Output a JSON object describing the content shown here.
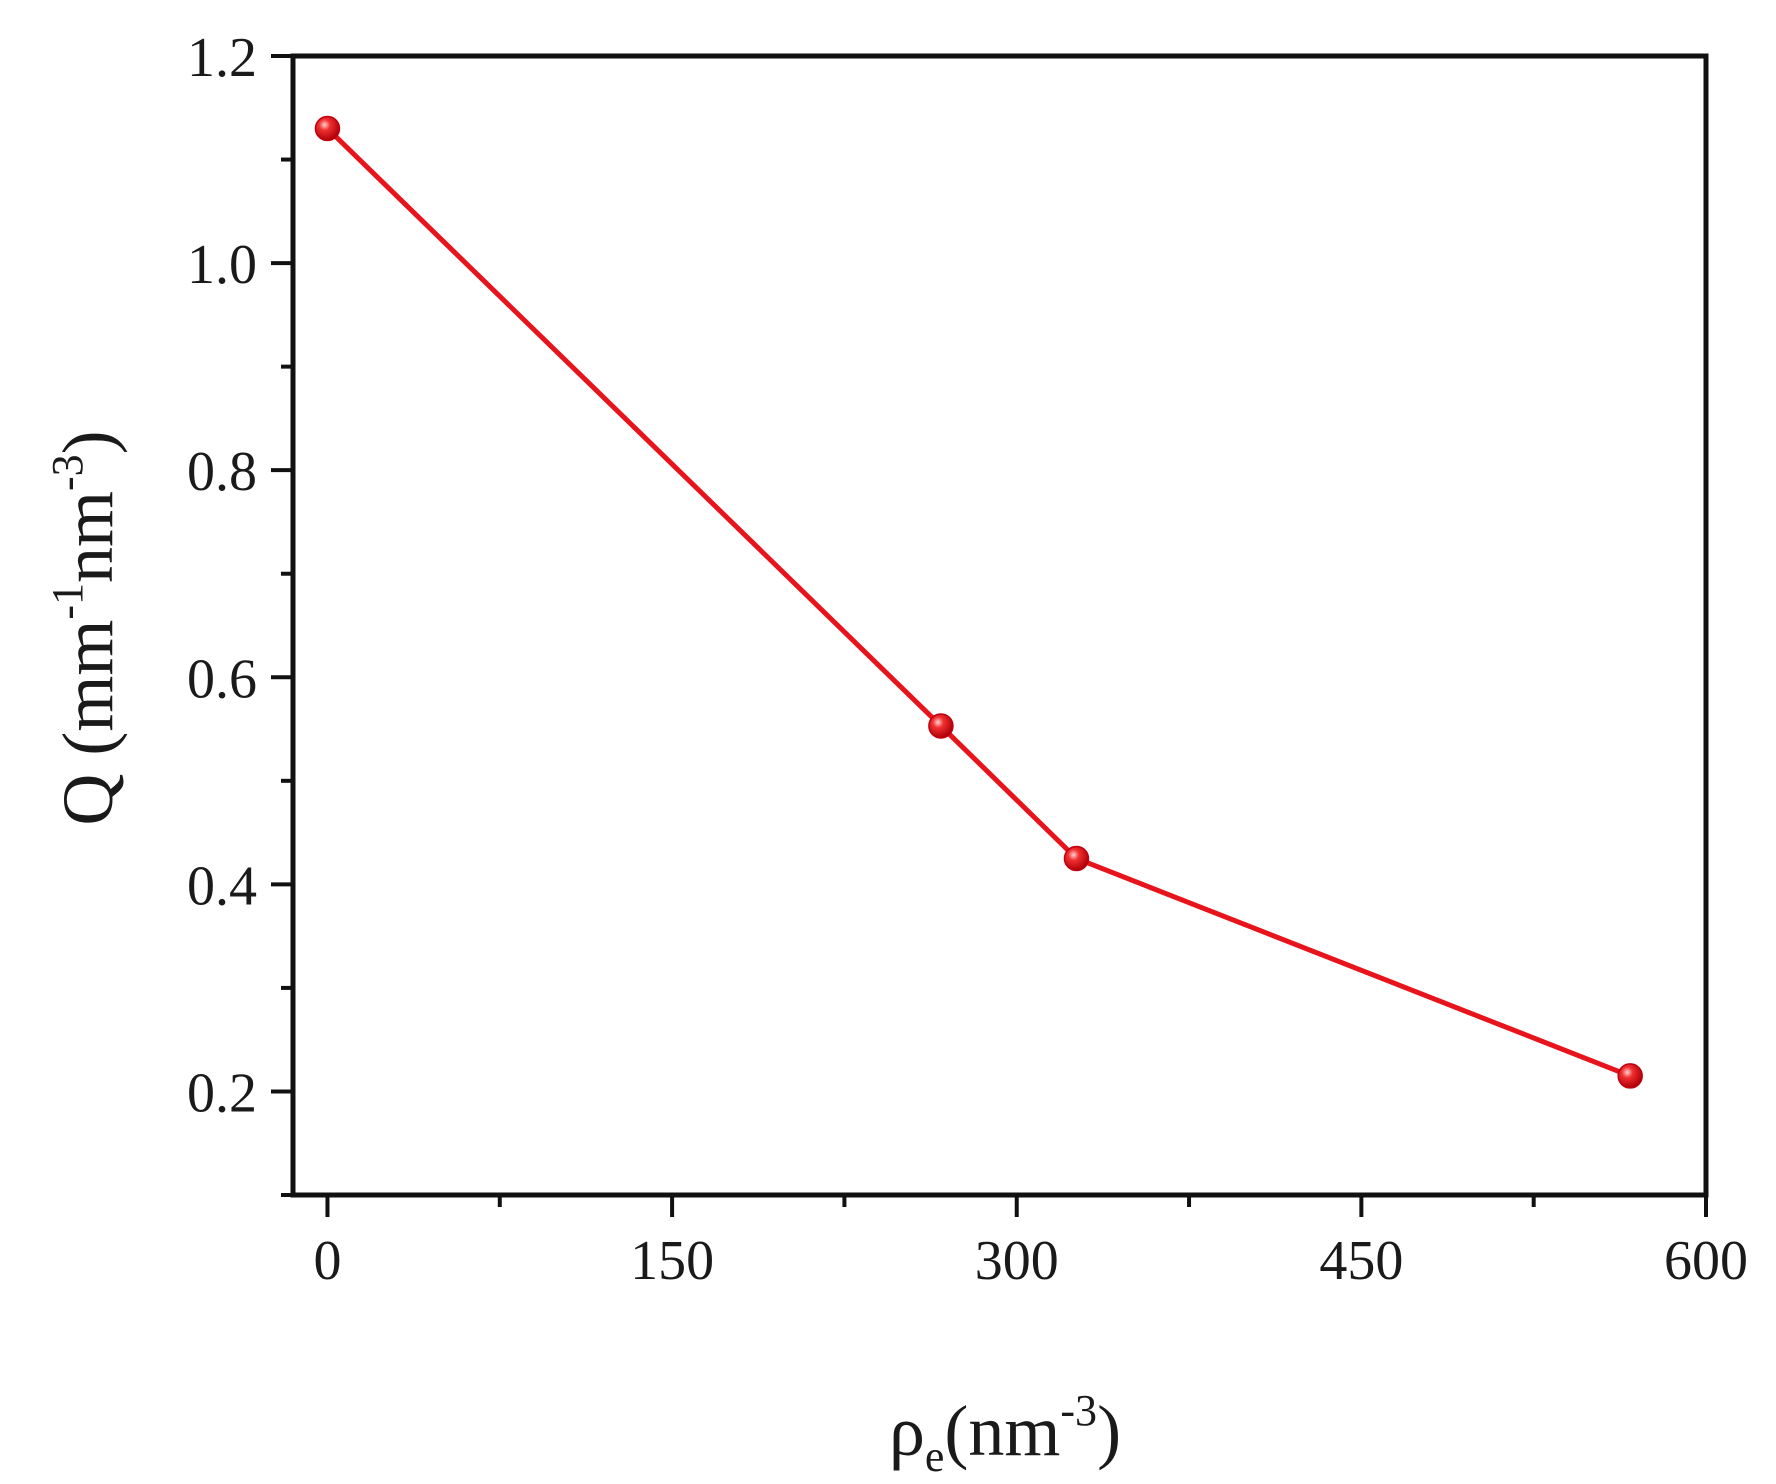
{
  "chart_data": {
    "type": "line",
    "title": "",
    "xlabel": {
      "base": "ρ",
      "subscript": "e",
      "unit_open": "(nm",
      "unit_exp": "-3",
      "unit_close": ")"
    },
    "ylabel": {
      "symbol": "Q (mm",
      "exp1": "-1",
      "mid": "nm",
      "exp2": "-3",
      "close": ")"
    },
    "xlim": [
      -15,
      600
    ],
    "ylim": [
      0.1,
      1.2
    ],
    "xticks": [
      0,
      150,
      300,
      450,
      600
    ],
    "xtick_labels": [
      "0",
      "150",
      "300",
      "450",
      "600"
    ],
    "xminor": [
      75,
      225,
      375,
      525
    ],
    "yticks": [
      0.2,
      0.4,
      0.6,
      0.8,
      1.0,
      1.2
    ],
    "ytick_labels": [
      "0.2",
      "0.4",
      "0.6",
      "0.8",
      "1.0",
      "1.2"
    ],
    "yminor": [
      0.1,
      0.3,
      0.5,
      0.7,
      0.9,
      1.1
    ],
    "grid": false,
    "legend": "none",
    "series": [
      {
        "color": "#e8141c",
        "marker": "circle",
        "x": [
          0,
          267,
          326,
          567
        ],
        "y": [
          1.13,
          0.553,
          0.425,
          0.215
        ]
      }
    ]
  }
}
